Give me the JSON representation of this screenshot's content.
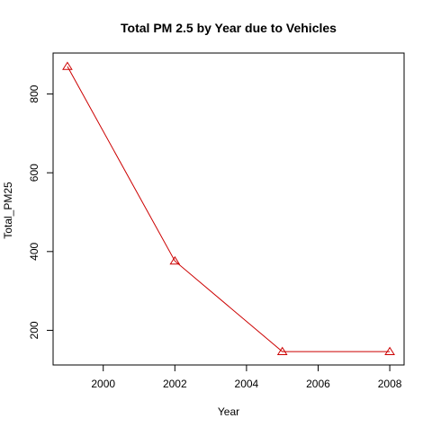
{
  "chart_data": {
    "type": "line",
    "title": "Total PM 2.5 by Year due to Vehicles",
    "xlabel": "Year",
    "ylabel": "Total_PM25",
    "x": [
      1999,
      2002,
      2005,
      2008
    ],
    "series": [
      {
        "values": [
          870,
          376,
          146,
          146
        ],
        "color": "#cc0000",
        "marker": "triangle-open"
      }
    ],
    "xlim": [
      1998.6,
      2008.4
    ],
    "ylim": [
      112,
      904
    ],
    "x_ticks": [
      2000,
      2002,
      2004,
      2006,
      2008
    ],
    "y_ticks": [
      200,
      400,
      600,
      800
    ],
    "grid": false,
    "legend": "none"
  }
}
